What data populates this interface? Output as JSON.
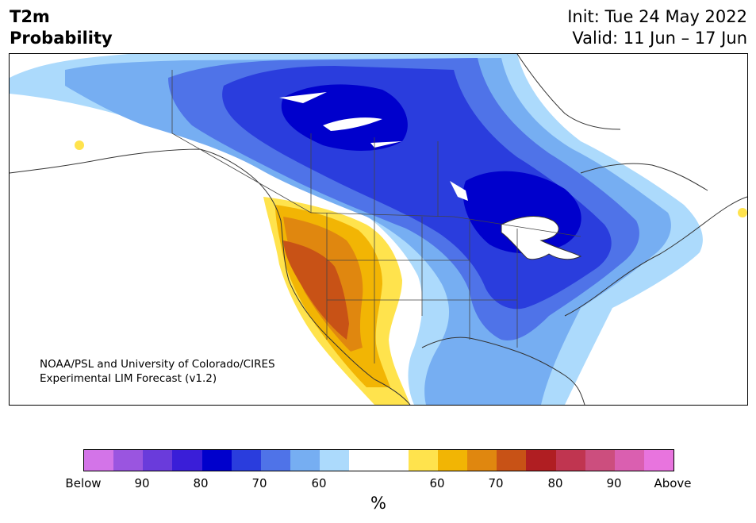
{
  "title": {
    "variable": "T2m",
    "quantity": "Probability",
    "init": "Init: Tue 24 May 2022",
    "valid": "Valid: 11 Jun – 17 Jun"
  },
  "credit": {
    "line1": "NOAA/PSL and University of Colorado/CIRES",
    "line2": "Experimental LIM Forecast (v1.2)"
  },
  "colorbar": {
    "unit": "%",
    "colors": [
      "#d374e8",
      "#9a55e0",
      "#6a3bdb",
      "#3a1ed8",
      "#0000cc",
      "#2a3ddd",
      "#4f73e8",
      "#76aef2",
      "#acdafc",
      "#ffffff",
      "#ffffff",
      "#ffe34d",
      "#f2b504",
      "#e0870f",
      "#c85216",
      "#b01e22",
      "#c03550",
      "#cc4e7e",
      "#da5fb0",
      "#e874de"
    ],
    "tick_labels": [
      "Below",
      "90",
      "80",
      "70",
      "60",
      "60",
      "70",
      "80",
      "90",
      "Above"
    ]
  },
  "legend_colors": {
    "below_60": "#acdafc",
    "below_70": "#76aef2",
    "below_80": "#2a3ddd",
    "below_90": "#0000cc",
    "above_60": "#ffe34d",
    "above_70": "#e0870f",
    "above_80": "#c85216"
  }
}
